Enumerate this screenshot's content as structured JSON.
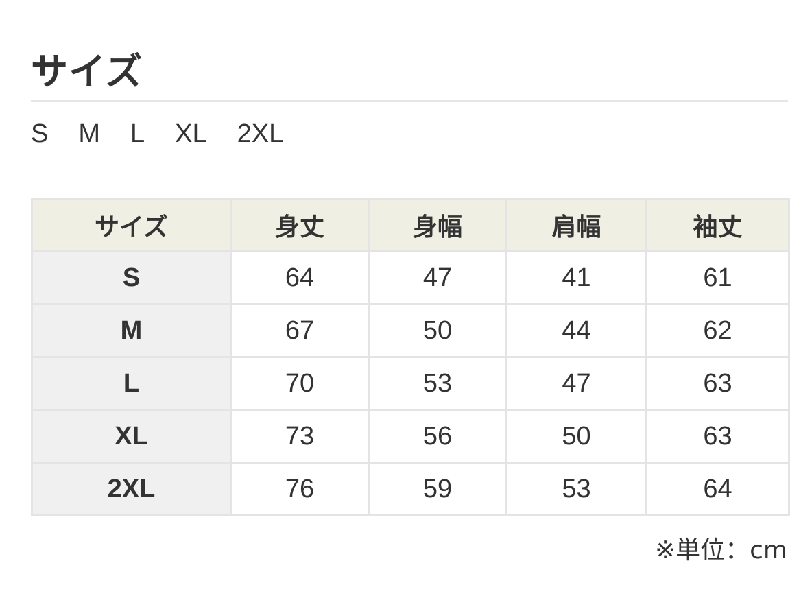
{
  "title": "サイズ",
  "available_sizes": [
    "S",
    "M",
    "L",
    "XL",
    "2XL"
  ],
  "table": {
    "headers": [
      "サイズ",
      "身丈",
      "身幅",
      "肩幅",
      "袖丈"
    ],
    "rows": [
      [
        "S",
        "64",
        "47",
        "41",
        "61"
      ],
      [
        "M",
        "67",
        "50",
        "44",
        "62"
      ],
      [
        "L",
        "70",
        "53",
        "47",
        "63"
      ],
      [
        "XL",
        "73",
        "56",
        "50",
        "63"
      ],
      [
        "2XL",
        "76",
        "59",
        "53",
        "64"
      ]
    ]
  },
  "unit_note": "※単位：cm",
  "colors": {
    "header_bg": "#efefe3",
    "row_header_bg": "#f0f0f0",
    "border": "#e4e4e4"
  }
}
